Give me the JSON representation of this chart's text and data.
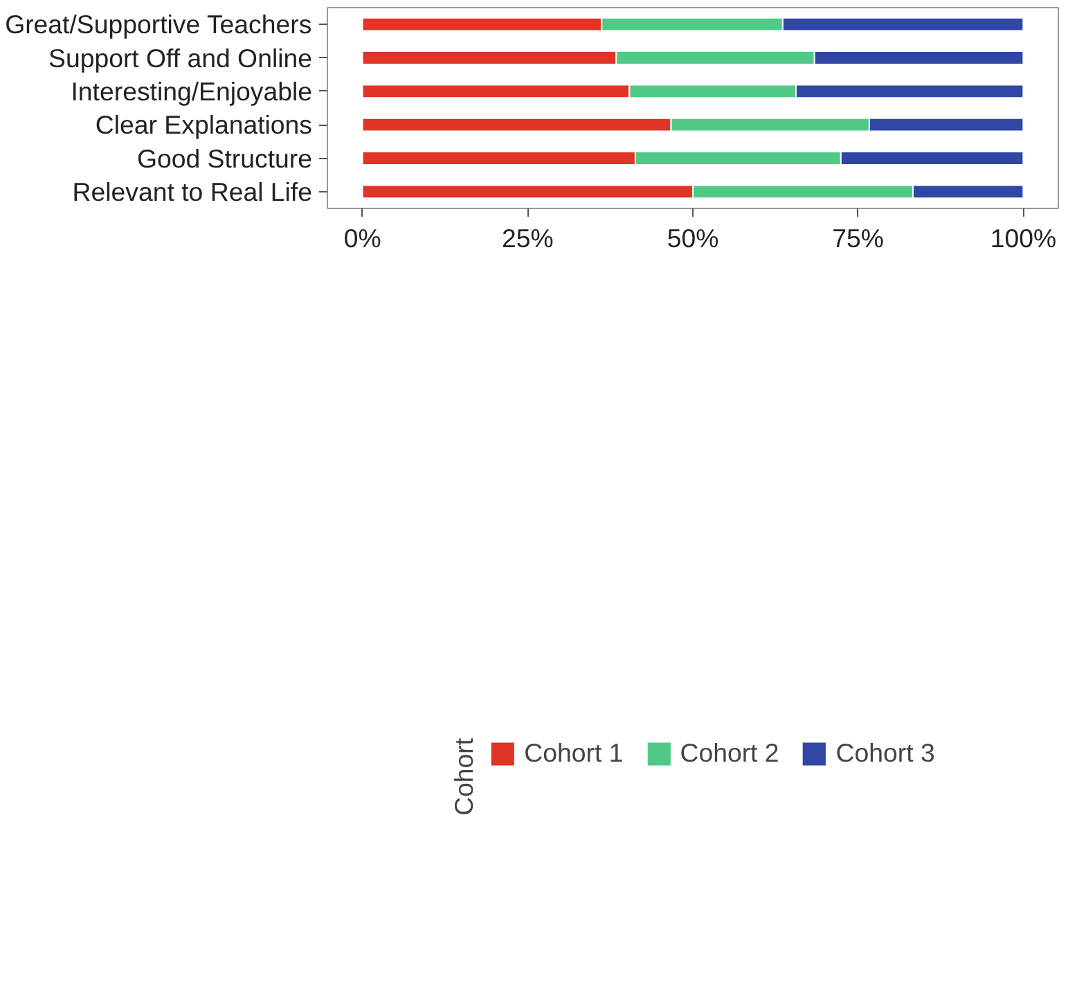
{
  "chart_data": {
    "type": "bar",
    "orientation": "horizontal",
    "stacked": true,
    "categories": [
      "Great/Supportive Teachers",
      "Support Off and Online",
      "Interesting/Enjoyable",
      "Clear Explanations",
      "Good Structure",
      "Relevant to Real Life"
    ],
    "series": [
      {
        "name": "Cohort 1",
        "color": "#e03426",
        "values": [
          36.2,
          38.4,
          40.4,
          46.7,
          41.3,
          50.0
        ]
      },
      {
        "name": "Cohort 2",
        "color": "#50c986",
        "values": [
          27.4,
          30.0,
          25.2,
          30.0,
          31.1,
          33.3
        ]
      },
      {
        "name": "Cohort 3",
        "color": "#3047a6",
        "values": [
          36.4,
          31.6,
          34.4,
          23.3,
          27.6,
          16.7
        ]
      }
    ],
    "xlim": [
      -5.3,
      105.3
    ],
    "xticks": [
      {
        "value": 0,
        "label": "0%"
      },
      {
        "value": 25,
        "label": "25%"
      },
      {
        "value": 50,
        "label": "50%"
      },
      {
        "value": 75,
        "label": "75%"
      },
      {
        "value": 100,
        "label": "100%"
      }
    ],
    "legend_title": "Cohort",
    "legend": "bottom",
    "grid": false
  }
}
